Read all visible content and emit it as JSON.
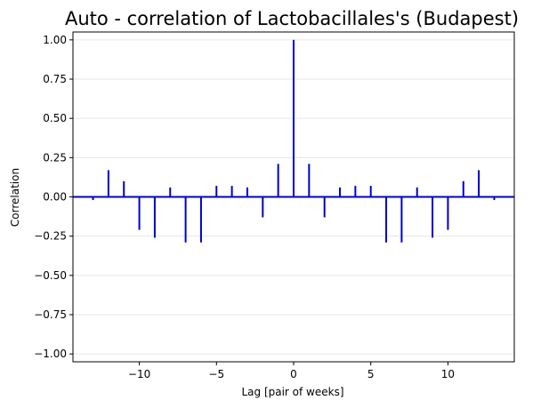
{
  "chart_data": {
    "type": "bar",
    "title": "Auto - correlation of Lactobacillales's (Budapest)",
    "xlabel": "Lag [pair of weeks]",
    "ylabel": "Correlation",
    "xlim": [
      -14.3,
      14.3
    ],
    "ylim": [
      -1.05,
      1.05
    ],
    "xticks": [
      -10,
      -5,
      0,
      5,
      10
    ],
    "xtick_labels": [
      "−10",
      "−5",
      "0",
      "5",
      "10"
    ],
    "yticks": [
      -1.0,
      -0.75,
      -0.5,
      -0.25,
      0.0,
      0.25,
      0.5,
      0.75,
      1.0
    ],
    "ytick_labels": [
      "−1.00",
      "−0.75",
      "−0.50",
      "−0.25",
      "0.00",
      "0.25",
      "0.50",
      "0.75",
      "1.00"
    ],
    "grid": "horizontal",
    "series_color": "#0000cc",
    "lags": [
      -13,
      -12,
      -11,
      -10,
      -9,
      -8,
      -7,
      -6,
      -5,
      -4,
      -3,
      -2,
      -1,
      0,
      1,
      2,
      3,
      4,
      5,
      6,
      7,
      8,
      9,
      10,
      11,
      12,
      13
    ],
    "values": [
      -0.02,
      0.17,
      0.1,
      -0.21,
      -0.26,
      0.06,
      -0.29,
      -0.29,
      0.07,
      0.07,
      0.06,
      -0.13,
      0.21,
      1.0,
      0.21,
      -0.13,
      0.06,
      0.07,
      0.07,
      -0.29,
      -0.29,
      0.06,
      -0.26,
      -0.21,
      0.1,
      0.17,
      -0.02
    ]
  }
}
